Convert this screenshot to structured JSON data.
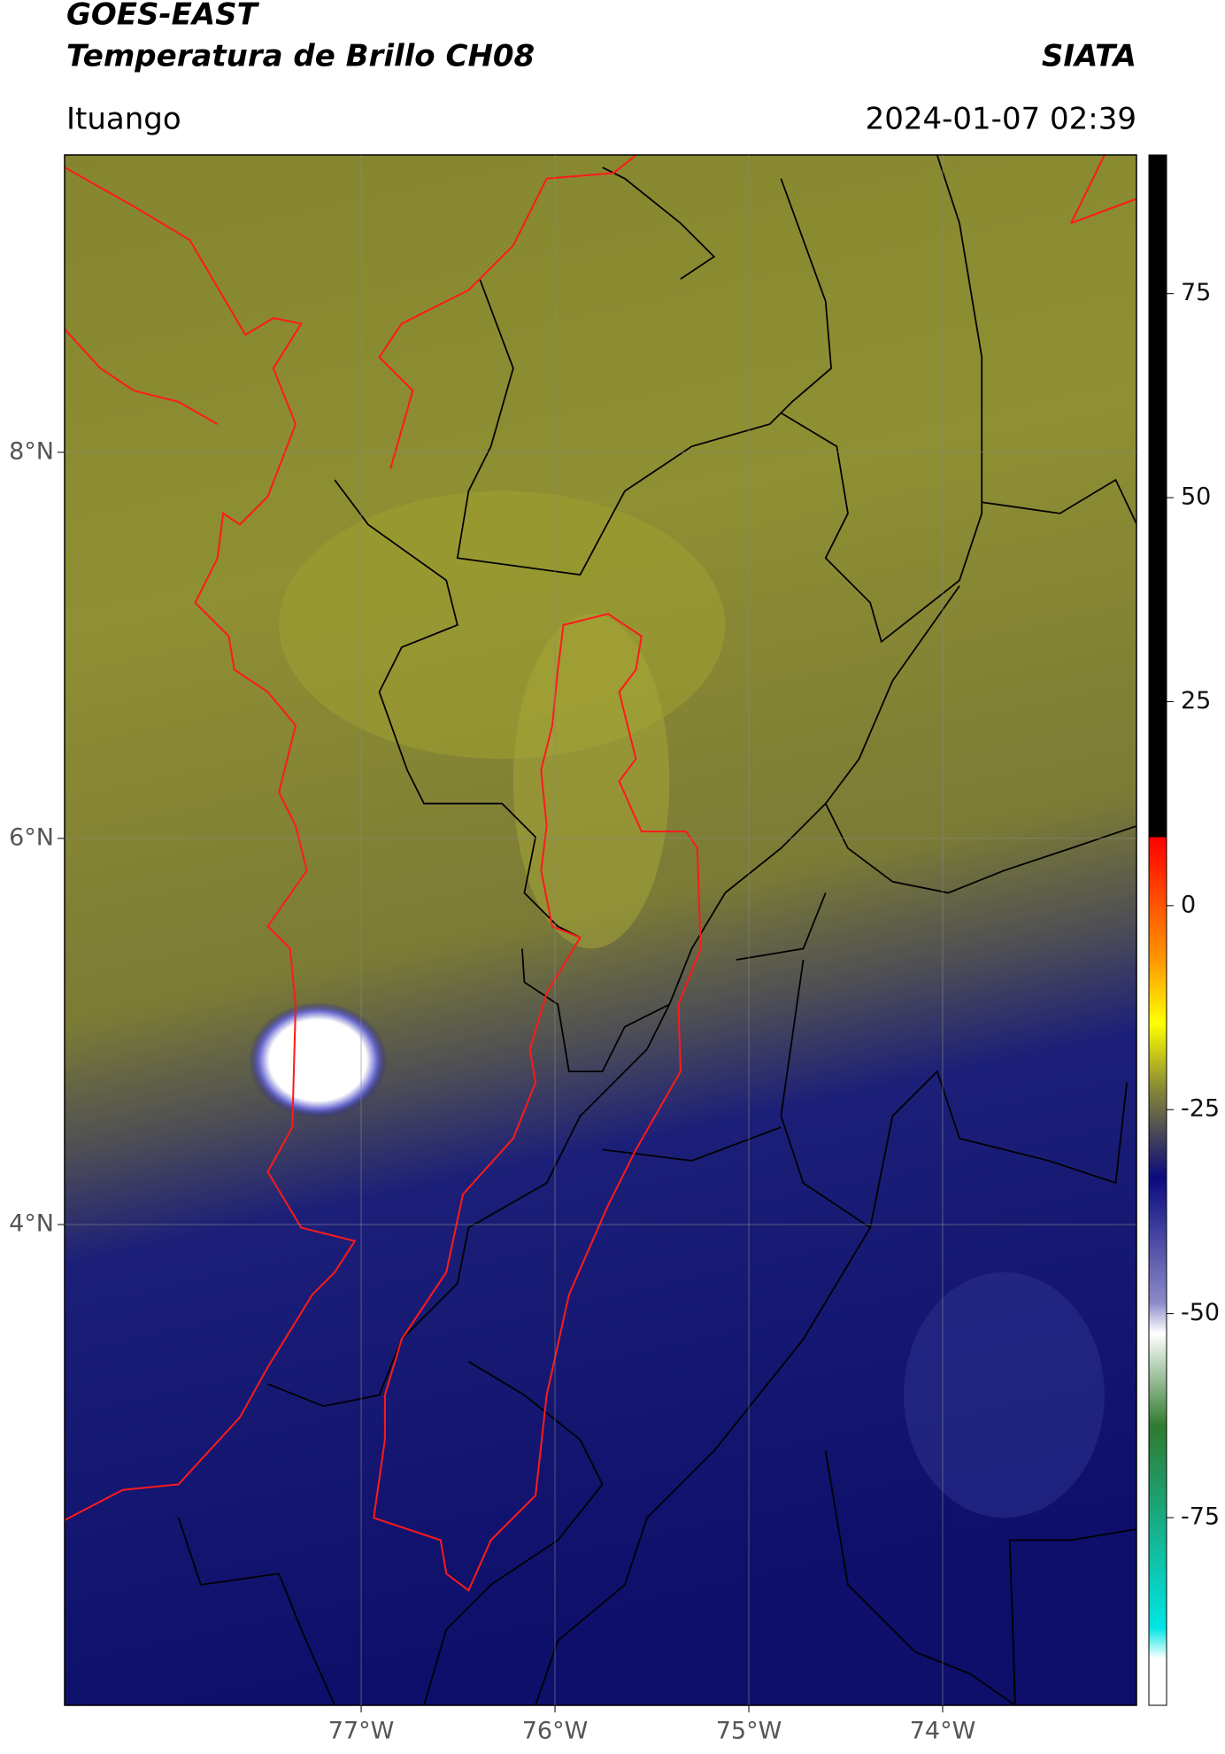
{
  "header": {
    "title": "GOES-EAST",
    "subtitle": "Temperatura de Brillo CH08",
    "source": "SIATA",
    "location": "Ituango",
    "timestamp": "2024-01-07 02:39"
  },
  "map": {
    "xlim": [
      -78.53,
      -73.0
    ],
    "ylim": [
      1.51,
      9.54
    ],
    "xticks": [
      {
        "value": -77,
        "label": "77°W"
      },
      {
        "value": -76,
        "label": "76°W"
      },
      {
        "value": -75,
        "label": "75°W"
      },
      {
        "value": -74,
        "label": "74°W"
      }
    ],
    "yticks": [
      {
        "value": 4,
        "label": "4°N"
      },
      {
        "value": 6,
        "label": "6°N"
      },
      {
        "value": 8,
        "label": "8°N"
      }
    ],
    "grid": true
  },
  "colorbar": {
    "clim": [
      -98,
      92
    ],
    "ticks": [
      -75,
      -50,
      -25,
      0,
      25,
      50,
      75
    ]
  }
}
